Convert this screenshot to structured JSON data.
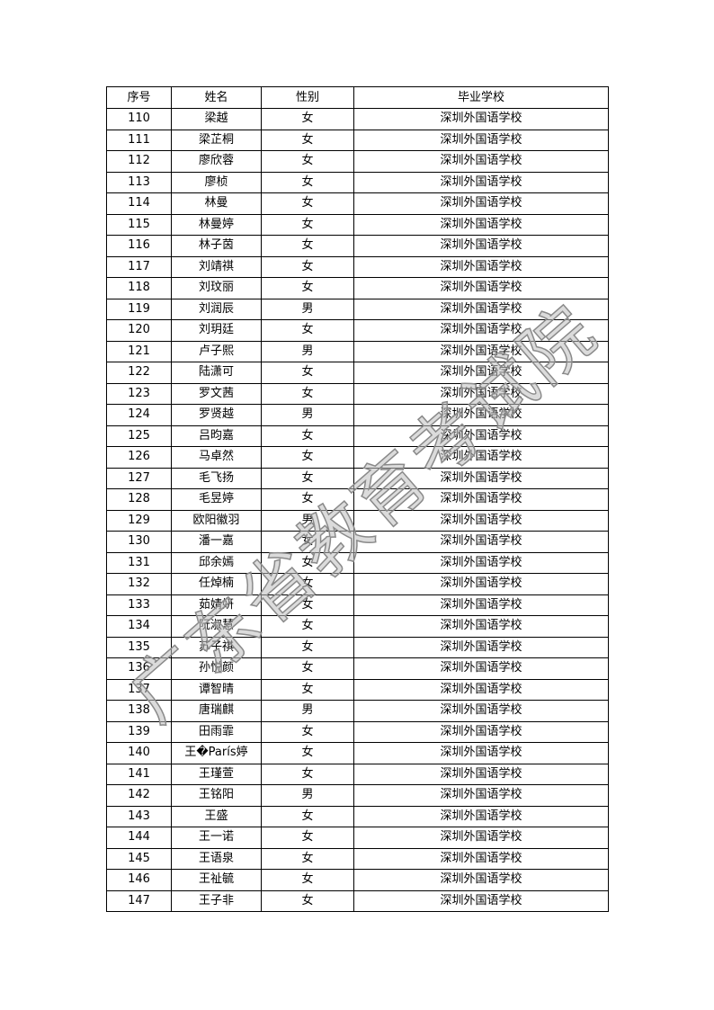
{
  "table": {
    "headers": [
      "序号",
      "姓名",
      "性别",
      "毕业学校"
    ],
    "rows": [
      [
        "110",
        "梁越",
        "女",
        "深圳外国语学校"
      ],
      [
        "111",
        "梁芷桐",
        "女",
        "深圳外国语学校"
      ],
      [
        "112",
        "廖欣蓉",
        "女",
        "深圳外国语学校"
      ],
      [
        "113",
        "廖桢",
        "女",
        "深圳外国语学校"
      ],
      [
        "114",
        "林曼",
        "女",
        "深圳外国语学校"
      ],
      [
        "115",
        "林曼婷",
        "女",
        "深圳外国语学校"
      ],
      [
        "116",
        "林子茵",
        "女",
        "深圳外国语学校"
      ],
      [
        "117",
        "刘靖祺",
        "女",
        "深圳外国语学校"
      ],
      [
        "118",
        "刘玟丽",
        "女",
        "深圳外国语学校"
      ],
      [
        "119",
        "刘润辰",
        "男",
        "深圳外国语学校"
      ],
      [
        "120",
        "刘玥廷",
        "女",
        "深圳外国语学校"
      ],
      [
        "121",
        "卢子熙",
        "男",
        "深圳外国语学校"
      ],
      [
        "122",
        "陆潇可",
        "女",
        "深圳外国语学校"
      ],
      [
        "123",
        "罗文茜",
        "女",
        "深圳外国语学校"
      ],
      [
        "124",
        "罗贤越",
        "男",
        "深圳外国语学校"
      ],
      [
        "125",
        "吕昀嘉",
        "女",
        "深圳外国语学校"
      ],
      [
        "126",
        "马卓然",
        "女",
        "深圳外国语学校"
      ],
      [
        "127",
        "毛飞扬",
        "女",
        "深圳外国语学校"
      ],
      [
        "128",
        "毛昱婷",
        "女",
        "深圳外国语学校"
      ],
      [
        "129",
        "欧阳徽羽",
        "男",
        "深圳外国语学校"
      ],
      [
        "130",
        "潘一嘉",
        "女",
        "深圳外国语学校"
      ],
      [
        "131",
        "邱余嫣",
        "女",
        "深圳外国语学校"
      ],
      [
        "132",
        "任焯楠",
        "女",
        "深圳外国语学校"
      ],
      [
        "133",
        "茹婧妍",
        "女",
        "深圳外国语学校"
      ],
      [
        "134",
        "阮淑慧",
        "女",
        "深圳外国语学校"
      ],
      [
        "135",
        "苏子祺",
        "女",
        "深圳外国语学校"
      ],
      [
        "136",
        "孙悦颜",
        "女",
        "深圳外国语学校"
      ],
      [
        "137",
        "谭智晴",
        "女",
        "深圳外国语学校"
      ],
      [
        "138",
        "唐瑞麒",
        "男",
        "深圳外国语学校"
      ],
      [
        "139",
        "田雨霏",
        "女",
        "深圳外国语学校"
      ],
      [
        "140",
        "王�París婷",
        "女",
        "深圳外国语学校"
      ],
      [
        "141",
        "王瑾萱",
        "女",
        "深圳外国语学校"
      ],
      [
        "142",
        "王铭阳",
        "男",
        "深圳外国语学校"
      ],
      [
        "143",
        "王盛",
        "女",
        "深圳外国语学校"
      ],
      [
        "144",
        "王一诺",
        "女",
        "深圳外国语学校"
      ],
      [
        "145",
        "王语泉",
        "女",
        "深圳外国语学校"
      ],
      [
        "146",
        "王祉毓",
        "女",
        "深圳外国语学校"
      ],
      [
        "147",
        "王子非",
        "女",
        "深圳外国语学校"
      ]
    ]
  },
  "watermark": "广东省教育考试院"
}
